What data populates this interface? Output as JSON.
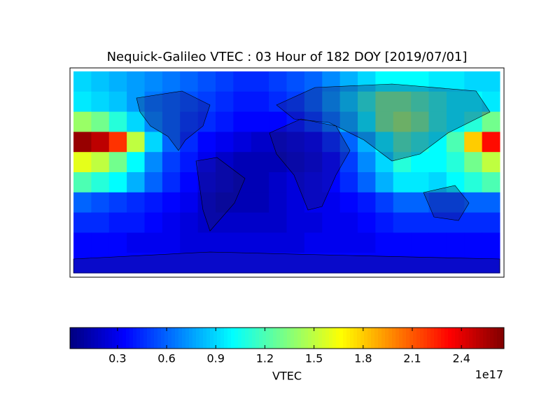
{
  "chart_data": {
    "type": "heatmap",
    "title": "Nequick-Galileo VTEC : 03 Hour of 182 DOY [2019/07/01]",
    "z": [
      [
        0.9,
        0.85,
        0.8,
        0.75,
        0.7,
        0.65,
        0.6,
        0.55,
        0.5,
        0.45,
        0.45,
        0.5,
        0.55,
        0.6,
        0.7,
        0.8,
        0.9,
        1.0,
        1.0,
        1.0,
        0.95,
        0.95,
        0.9,
        0.9
      ],
      [
        0.95,
        0.9,
        0.85,
        0.75,
        0.65,
        0.6,
        0.55,
        0.5,
        0.45,
        0.4,
        0.4,
        0.45,
        0.5,
        0.6,
        0.75,
        0.9,
        1.1,
        1.3,
        1.3,
        1.2,
        1.1,
        1.0,
        1.0,
        0.95
      ],
      [
        1.4,
        1.3,
        1.1,
        0.9,
        0.7,
        0.6,
        0.5,
        0.45,
        0.4,
        0.35,
        0.35,
        0.35,
        0.4,
        0.5,
        0.65,
        0.8,
        1.0,
        1.3,
        1.4,
        1.3,
        1.1,
        1.0,
        1.1,
        1.3
      ],
      [
        2.6,
        2.5,
        2.2,
        1.5,
        0.9,
        0.6,
        0.45,
        0.35,
        0.3,
        0.25,
        0.2,
        0.2,
        0.25,
        0.3,
        0.45,
        0.6,
        0.8,
        1.0,
        1.2,
        1.1,
        1.0,
        1.2,
        1.8,
        2.3
      ],
      [
        1.6,
        1.5,
        1.3,
        1.0,
        0.7,
        0.5,
        0.4,
        0.3,
        0.2,
        0.15,
        0.15,
        0.15,
        0.2,
        0.25,
        0.35,
        0.5,
        0.7,
        0.9,
        1.1,
        1.0,
        1.0,
        1.1,
        1.3,
        1.5
      ],
      [
        1.2,
        1.1,
        1.0,
        0.8,
        0.6,
        0.45,
        0.35,
        0.25,
        0.2,
        0.15,
        0.15,
        0.2,
        0.25,
        0.3,
        0.35,
        0.45,
        0.6,
        0.8,
        0.95,
        0.95,
        0.9,
        1.0,
        1.1,
        1.2
      ],
      [
        0.6,
        0.55,
        0.5,
        0.45,
        0.4,
        0.35,
        0.3,
        0.2,
        0.15,
        0.15,
        0.15,
        0.2,
        0.25,
        0.3,
        0.3,
        0.35,
        0.4,
        0.5,
        0.6,
        0.6,
        0.55,
        0.55,
        0.6,
        0.6
      ],
      [
        0.45,
        0.45,
        0.4,
        0.4,
        0.35,
        0.3,
        0.25,
        0.2,
        0.2,
        0.2,
        0.2,
        0.2,
        0.25,
        0.25,
        0.3,
        0.3,
        0.35,
        0.4,
        0.45,
        0.45,
        0.45,
        0.45,
        0.45,
        0.45
      ],
      [
        0.35,
        0.35,
        0.35,
        0.3,
        0.3,
        0.3,
        0.25,
        0.25,
        0.25,
        0.25,
        0.25,
        0.25,
        0.25,
        0.3,
        0.3,
        0.3,
        0.3,
        0.35,
        0.35,
        0.35,
        0.35,
        0.35,
        0.35,
        0.35
      ],
      [
        0.35,
        0.35,
        0.35,
        0.35,
        0.35,
        0.35,
        0.35,
        0.35,
        0.35,
        0.35,
        0.35,
        0.35,
        0.35,
        0.35,
        0.35,
        0.35,
        0.35,
        0.35,
        0.35,
        0.35,
        0.35,
        0.35,
        0.35,
        0.35
      ]
    ],
    "clim": [
      0.01,
      2.66
    ],
    "colorbar_ticks": [
      0.3,
      0.6,
      0.9,
      1.2,
      1.5,
      1.8,
      2.1,
      2.4
    ],
    "colorbar_label": "VTEC",
    "colorbar_offset": "1e17",
    "colormap": "jet"
  }
}
